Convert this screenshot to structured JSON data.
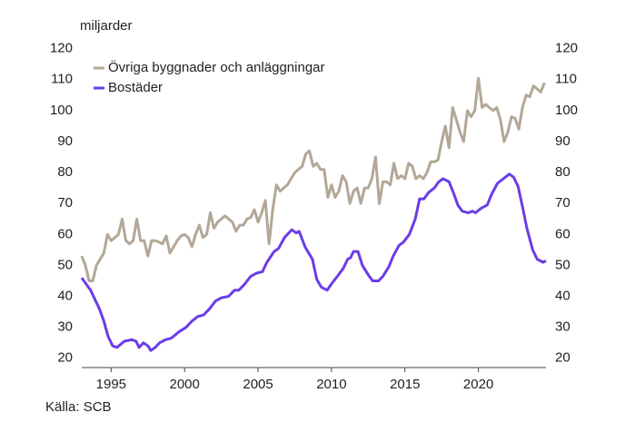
{
  "chart_data": {
    "type": "line",
    "y_axis_label": "miljarder",
    "source": "Källa: SCB",
    "xlim": [
      1993,
      2024.6
    ],
    "xticks": [
      1995,
      2000,
      2005,
      2010,
      2015,
      2020
    ],
    "ylim": [
      17,
      124
    ],
    "yticks": [
      20,
      30,
      40,
      50,
      60,
      70,
      80,
      90,
      100,
      110,
      120
    ],
    "y2lim": [
      17,
      124
    ],
    "y2ticks": [
      20,
      30,
      40,
      50,
      60,
      70,
      80,
      90,
      100,
      110,
      120
    ],
    "grid": false,
    "legend": "upper left",
    "series": [
      {
        "name": "Övriga byggnader och anläggningar",
        "color": "#b3a797",
        "x": [
          1993,
          1993.25,
          1993.5,
          1993.75,
          1994,
          1994.25,
          1994.5,
          1994.75,
          1995,
          1995.25,
          1995.5,
          1995.75,
          1996,
          1996.25,
          1996.5,
          1996.75,
          1997,
          1997.25,
          1997.5,
          1997.75,
          1998,
          1998.25,
          1998.5,
          1998.75,
          1999,
          1999.25,
          1999.5,
          1999.75,
          2000,
          2000.25,
          2000.5,
          2000.75,
          2001,
          2001.25,
          2001.5,
          2001.75,
          2002,
          2002.25,
          2002.5,
          2002.75,
          2003,
          2003.25,
          2003.5,
          2003.75,
          2004,
          2004.25,
          2004.5,
          2004.75,
          2005,
          2005.25,
          2005.5,
          2005.75,
          2006,
          2006.25,
          2006.5,
          2006.75,
          2007,
          2007.25,
          2007.5,
          2007.75,
          2008,
          2008.25,
          2008.5,
          2008.75,
          2009,
          2009.25,
          2009.5,
          2009.75,
          2010,
          2010.25,
          2010.5,
          2010.75,
          2011,
          2011.25,
          2011.5,
          2011.75,
          2012,
          2012.25,
          2012.5,
          2012.75,
          2013,
          2013.25,
          2013.5,
          2013.75,
          2014,
          2014.25,
          2014.5,
          2014.75,
          2015,
          2015.25,
          2015.5,
          2015.75,
          2016,
          2016.25,
          2016.5,
          2016.75,
          2017,
          2017.25,
          2017.5,
          2017.75,
          2018,
          2018.25,
          2018.5,
          2018.75,
          2019,
          2019.25,
          2019.5,
          2019.75,
          2020,
          2020.25,
          2020.5,
          2020.75,
          2021,
          2021.25,
          2021.5,
          2021.75,
          2022,
          2022.25,
          2022.5,
          2022.75,
          2023,
          2023.25,
          2023.5,
          2023.75,
          2024,
          2024.25,
          2024.5
        ],
        "values": [
          53,
          50,
          45,
          45,
          50,
          52,
          54,
          60,
          58,
          59,
          60,
          65,
          58,
          57,
          58,
          65,
          58,
          58,
          53,
          58,
          58,
          57.5,
          57,
          59.5,
          54,
          56,
          58,
          59.5,
          60,
          59,
          56,
          60,
          63,
          59,
          60,
          67,
          62,
          64,
          65,
          66,
          65,
          64,
          61,
          63,
          63,
          65,
          65.5,
          68,
          64,
          67,
          71,
          57,
          68,
          76,
          74,
          75,
          76,
          78,
          80,
          81,
          82,
          86,
          87,
          82,
          83,
          81,
          81,
          72,
          76,
          72,
          74,
          79,
          77,
          70,
          74,
          75,
          70,
          75,
          75,
          78,
          85,
          70,
          77,
          77,
          76,
          83,
          78,
          79,
          78,
          83,
          82,
          78,
          79,
          78,
          80,
          83.5,
          83.5,
          84,
          90,
          95,
          88,
          101,
          97,
          93,
          90,
          100,
          98,
          100,
          110.5,
          101,
          102,
          101,
          100,
          101,
          97,
          90,
          93,
          98,
          97.5,
          94,
          101,
          105,
          104.5,
          108,
          107,
          106,
          109
        ]
      },
      {
        "name": "Bostäder",
        "color": "#6a3de8",
        "x": [
          1993,
          1993.6,
          1994.2,
          1994.5,
          1994.8,
          1995.1,
          1995.4,
          1995.9,
          1996.4,
          1996.7,
          1996.9,
          1997.2,
          1997.5,
          1997.7,
          1998,
          1998.3,
          1998.7,
          1999.1,
          1999.6,
          2000.1,
          2000.5,
          2000.9,
          2001.3,
          2001.7,
          2002.1,
          2002.5,
          2003,
          2003.4,
          2003.7,
          2004.1,
          2004.5,
          2004.9,
          2005.3,
          2005.6,
          2006.1,
          2006.4,
          2006.8,
          2007.3,
          2007.6,
          2007.8,
          2008.2,
          2008.7,
          2009,
          2009.3,
          2009.7,
          2010,
          2010.4,
          2010.8,
          2011.1,
          2011.3,
          2011.5,
          2011.8,
          2012.1,
          2012.5,
          2012.8,
          2013.2,
          2013.5,
          2013.9,
          2014.2,
          2014.6,
          2014.9,
          2015.3,
          2015.7,
          2016,
          2016.3,
          2016.6,
          2017,
          2017.3,
          2017.6,
          2018,
          2018.3,
          2018.6,
          2018.9,
          2019.3,
          2019.6,
          2019.8,
          2020.2,
          2020.6,
          2020.9,
          2021.3,
          2021.7,
          2022.1,
          2022.4,
          2022.7,
          2023,
          2023.3,
          2023.7,
          2024,
          2024.4,
          2024.6
        ],
        "values": [
          46,
          42,
          36,
          32,
          27,
          24,
          23.5,
          25.5,
          26,
          25.5,
          23.5,
          25,
          24,
          22.5,
          23.5,
          25,
          26,
          26.5,
          28.5,
          30,
          32,
          33.5,
          34,
          36,
          38.5,
          39.5,
          40,
          42,
          42,
          44,
          46.5,
          47.5,
          48,
          51,
          54.5,
          55.5,
          59,
          61.5,
          60.5,
          61,
          56,
          52,
          45.5,
          43,
          42,
          44,
          46.5,
          49,
          52,
          52.5,
          54.5,
          54.5,
          50,
          47,
          45,
          45,
          46.5,
          49.5,
          53,
          56.5,
          57.5,
          60,
          65,
          71.5,
          71.5,
          73.5,
          75,
          77,
          78,
          77,
          73.5,
          69.5,
          67.5,
          67,
          67.5,
          67,
          68.5,
          69.5,
          73,
          76.5,
          78,
          79.5,
          78.5,
          75.5,
          69,
          62,
          55,
          52,
          51,
          51.5
        ]
      }
    ]
  }
}
